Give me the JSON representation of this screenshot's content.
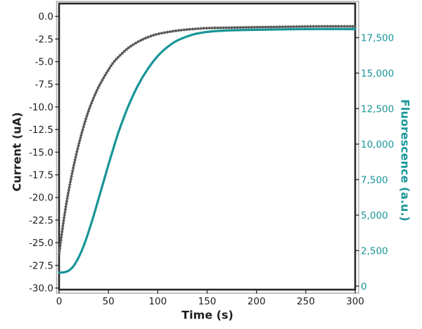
{
  "colors": {
    "background": "#ffffff",
    "frame": "#282828",
    "faint_spine": "#ababab",
    "tick": "#303030",
    "tick_text": "#1f1f1f",
    "current": "#585858",
    "fluorescence": "#189598"
  },
  "chart_data": {
    "type": "line",
    "title": "",
    "xlabel": "Time (s)",
    "ylabel_left": "Current (uA)",
    "ylabel_right": "Fluorescence (a.u.)",
    "xlim": [
      0,
      300
    ],
    "ylim_left": [
      -30,
      0
    ],
    "ylim_right": [
      0,
      17500
    ],
    "grid": false,
    "legend": "none",
    "render": {
      "xlim": [
        0,
        300
      ],
      "ylim_left": [
        -30.18,
        1.42
      ],
      "ylim_right": [
        -247,
        19900
      ]
    },
    "x_ticks": [
      {
        "v": 0,
        "label": "0"
      },
      {
        "v": 50,
        "label": "50"
      },
      {
        "v": 100,
        "label": "100"
      },
      {
        "v": 150,
        "label": "150"
      },
      {
        "v": 200,
        "label": "200"
      },
      {
        "v": 250,
        "label": "250"
      },
      {
        "v": 300,
        "label": "300"
      }
    ],
    "left_ticks": [
      {
        "v": 0,
        "label": "0.0"
      },
      {
        "v": -2.5,
        "label": "-2.5"
      },
      {
        "v": -5,
        "label": "-5.0"
      },
      {
        "v": -7.5,
        "label": "-7.5"
      },
      {
        "v": -10,
        "label": "-10.0"
      },
      {
        "v": -12.5,
        "label": "-12.5"
      },
      {
        "v": -15,
        "label": "-15.0"
      },
      {
        "v": -17.5,
        "label": "-17.5"
      },
      {
        "v": -20,
        "label": "-20.0"
      },
      {
        "v": -22.5,
        "label": "-22.5"
      },
      {
        "v": -25,
        "label": "-25.0"
      },
      {
        "v": -27.5,
        "label": "-27.5"
      },
      {
        "v": -30,
        "label": "-30.0"
      }
    ],
    "right_ticks": [
      {
        "v": 0,
        "label": "0"
      },
      {
        "v": 2500,
        "label": "2,500"
      },
      {
        "v": 5000,
        "label": "5,000"
      },
      {
        "v": 7500,
        "label": "7,500"
      },
      {
        "v": 10000,
        "label": "10,000"
      },
      {
        "v": 12500,
        "label": "12,500"
      },
      {
        "v": 15000,
        "label": "15,000"
      },
      {
        "v": 17500,
        "label": "17,500"
      }
    ],
    "series": [
      {
        "name": "Current",
        "axis": "left",
        "color": "#585858",
        "style": "beaded",
        "width": 2.6,
        "x": [
          0,
          2,
          5,
          8,
          12,
          16,
          20,
          25,
          30,
          35,
          40,
          45,
          50,
          55,
          60,
          70,
          80,
          90,
          100,
          115,
          130,
          150,
          170,
          200,
          230,
          260,
          300
        ],
        "y": [
          -26.3,
          -24.6,
          -22.3,
          -20.3,
          -18.0,
          -15.9,
          -14.1,
          -12.1,
          -10.4,
          -9.0,
          -7.8,
          -6.8,
          -5.9,
          -5.1,
          -4.5,
          -3.5,
          -2.8,
          -2.3,
          -1.95,
          -1.65,
          -1.45,
          -1.3,
          -1.25,
          -1.2,
          -1.15,
          -1.1,
          -1.1
        ]
      },
      {
        "name": "Fluorescence",
        "axis": "right",
        "color": "#189598",
        "style": "solid",
        "width": 3.2,
        "x": [
          0,
          5,
          10,
          15,
          20,
          25,
          30,
          35,
          40,
          45,
          50,
          55,
          60,
          65,
          70,
          80,
          90,
          100,
          110,
          120,
          135,
          150,
          170,
          200,
          250,
          300
        ],
        "y": [
          950,
          975,
          1100,
          1450,
          2050,
          2850,
          3850,
          4950,
          6150,
          7350,
          8550,
          9700,
          10800,
          11750,
          12650,
          14150,
          15300,
          16200,
          16850,
          17300,
          17700,
          17900,
          18000,
          18050,
          18100,
          18100
        ]
      }
    ]
  }
}
